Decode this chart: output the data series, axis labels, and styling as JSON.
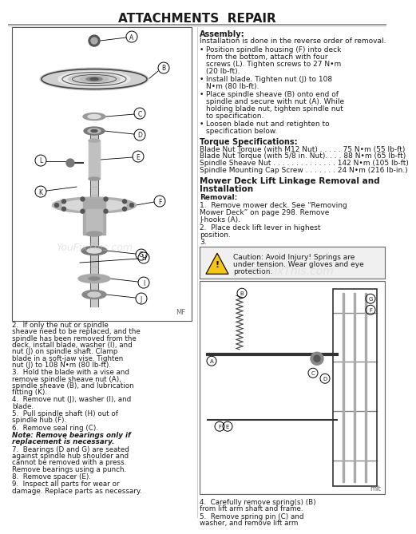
{
  "title": "ATTACHMENTS  REPAIR",
  "bg_color": "#ffffff",
  "assembly_title": "Assembly:",
  "assembly_intro": "Installation is done in the reverse order of removal.",
  "bullet1": "Position spindle housing (F) into deck from the bottom, attach with four screws (L). Tighten screws to 27 N•m (20 lb-ft).",
  "bullet2": "Install blade. Tighten nut (J) to 108 N•m (80 lb-ft).",
  "bullet3": "Place spindle sheave (B) onto end of spindle and secure with nut (A). While holding blade nut, tighten spindle nut to specification.",
  "bullet4": "Loosen blade nut and retighten to specification below.",
  "torque_title": "Torque Specifications:",
  "torque1": "Blade Nut Torque (with M12 Nut) . . . . . 75 N•m (55 lb-ft)",
  "torque2": "Blade Nut Torque (with 5/8 in. Nut). . . . 88 N•m (65 lb-ft)",
  "torque3": "Spindle Sheave Nut . . . . . . . . . . . . . . 142 N•m (105 lb-ft)",
  "torque4": "Spindle Mounting Cap Screw . . . . . . . 24 N•m (216 lb-in.)",
  "section2_line1": "Mower Deck Lift Linkage Removal and",
  "section2_line2": "Installation",
  "removal_label": "Removal:",
  "step1": "1.  Remove mower deck. See “Removing Mower Deck” on page 298. Remove J-hooks (A).",
  "step2": "2.  Place deck lift lever in highest position.",
  "step3": "3.",
  "caution": "Caution: Avoid Injury! Springs are under tension. Wear gloves and eye protection.",
  "btm_step2": "2.  If only the nut or spindle sheave need to be replaced, and the spindle has been removed from the deck, install blade, washer (I), and nut (J) on spindle shaft. Clamp blade in a soft-jaw vise. Tighten nut (J) to 108 N•m (80 lb-ft).",
  "btm_step3": "3.  Hold the blade with a vise and remove spindle sheave nut (A), spindle sheave (B), and lubrication fitting (K).",
  "btm_step4": "4.  Remove nut (J), washer (I), and blade.",
  "btm_step5": "5.  Pull spindle shaft (H) out of spindle hub (F).",
  "btm_step6": "6.  Remove seal ring (C).",
  "btm_note": "Note: Remove bearings only if replacement is necessary.",
  "btm_step7": "7.  Bearings (D and G) are seated against spindle hub shoulder and cannot be removed with a press. Remove bearings using a punch.",
  "btm_step8": "8.  Remove spacer (E).",
  "btm_step9": "9.  Inspect all parts for wear or damage. Replace parts as necessary.",
  "rbtm_step4": "4.  Carefully remove spring(s) (B) from lift arm shaft and frame.",
  "rbtm_step5": "5.  Remove spring pin (C) and washer, and remove lift arm",
  "watermark": "YouFixThis.com",
  "mf_label": "MF",
  "mlt_label": "mlt",
  "text_color": "#1a1a1a",
  "gray_text": "#666666"
}
